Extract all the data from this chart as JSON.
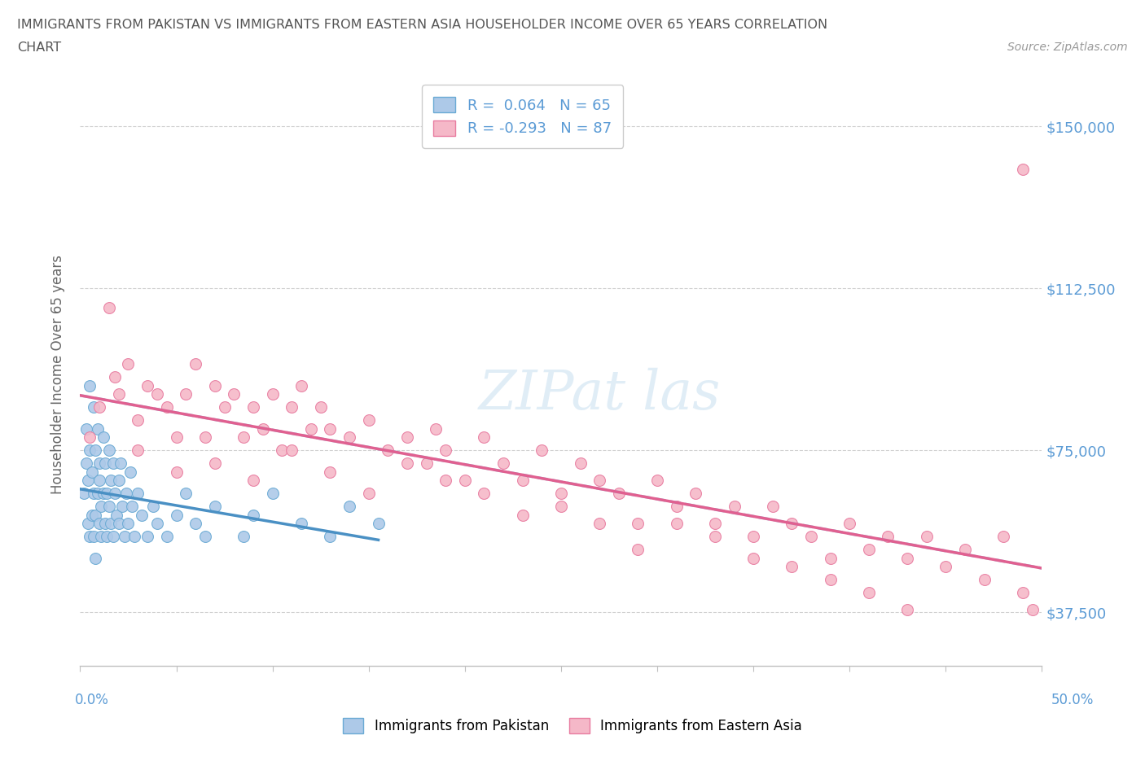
{
  "title_line1": "IMMIGRANTS FROM PAKISTAN VS IMMIGRANTS FROM EASTERN ASIA HOUSEHOLDER INCOME OVER 65 YEARS CORRELATION",
  "title_line2": "CHART",
  "source": "Source: ZipAtlas.com",
  "ylabel": "Householder Income Over 65 years",
  "y_ticks": [
    37500,
    75000,
    112500,
    150000
  ],
  "y_tick_labels": [
    "$37,500",
    "$75,000",
    "$112,500",
    "$150,000"
  ],
  "x_lim": [
    0,
    50
  ],
  "y_lim": [
    25000,
    160000
  ],
  "pakistan_color": "#adc9e8",
  "eastern_asia_color": "#f5b8c8",
  "pakistan_edge_color": "#6aaad4",
  "eastern_asia_edge_color": "#e87ca0",
  "pakistan_line_color": "#4a90c4",
  "eastern_asia_line_color": "#e06090",
  "pakistan_R": 0.064,
  "pakistan_N": 65,
  "eastern_asia_R": -0.293,
  "eastern_asia_N": 87,
  "legend_label_1": "Immigrants from Pakistan",
  "legend_label_2": "Immigrants from Eastern Asia",
  "watermark": "ZIPat las",
  "pakistan_scatter_x": [
    0.2,
    0.3,
    0.3,
    0.4,
    0.4,
    0.5,
    0.5,
    0.5,
    0.6,
    0.6,
    0.7,
    0.7,
    0.7,
    0.8,
    0.8,
    0.8,
    0.9,
    0.9,
    1.0,
    1.0,
    1.0,
    1.1,
    1.1,
    1.2,
    1.2,
    1.3,
    1.3,
    1.4,
    1.4,
    1.5,
    1.5,
    1.6,
    1.6,
    1.7,
    1.7,
    1.8,
    1.9,
    2.0,
    2.0,
    2.1,
    2.2,
    2.3,
    2.4,
    2.5,
    2.6,
    2.7,
    2.8,
    3.0,
    3.2,
    3.5,
    3.8,
    4.0,
    4.5,
    5.0,
    5.5,
    6.0,
    6.5,
    7.0,
    8.5,
    9.0,
    10.0,
    11.5,
    13.0,
    14.0,
    15.5
  ],
  "pakistan_scatter_y": [
    65000,
    72000,
    80000,
    58000,
    68000,
    55000,
    75000,
    90000,
    60000,
    70000,
    85000,
    65000,
    55000,
    75000,
    60000,
    50000,
    80000,
    65000,
    72000,
    58000,
    68000,
    62000,
    55000,
    78000,
    65000,
    58000,
    72000,
    65000,
    55000,
    75000,
    62000,
    68000,
    58000,
    72000,
    55000,
    65000,
    60000,
    68000,
    58000,
    72000,
    62000,
    55000,
    65000,
    58000,
    70000,
    62000,
    55000,
    65000,
    60000,
    55000,
    62000,
    58000,
    55000,
    60000,
    65000,
    58000,
    55000,
    62000,
    55000,
    60000,
    65000,
    58000,
    55000,
    62000,
    58000
  ],
  "eastern_asia_scatter_x": [
    0.5,
    1.0,
    1.5,
    1.8,
    2.0,
    2.5,
    3.0,
    3.5,
    4.0,
    4.5,
    5.0,
    5.5,
    6.0,
    6.5,
    7.0,
    7.5,
    8.0,
    8.5,
    9.0,
    9.5,
    10.0,
    10.5,
    11.0,
    11.5,
    12.0,
    12.5,
    13.0,
    14.0,
    15.0,
    16.0,
    17.0,
    18.0,
    18.5,
    19.0,
    20.0,
    21.0,
    22.0,
    23.0,
    24.0,
    25.0,
    26.0,
    27.0,
    28.0,
    29.0,
    30.0,
    31.0,
    32.0,
    33.0,
    34.0,
    35.0,
    36.0,
    37.0,
    38.0,
    39.0,
    40.0,
    41.0,
    42.0,
    43.0,
    44.0,
    45.0,
    46.0,
    47.0,
    48.0,
    49.0,
    49.5,
    3.0,
    5.0,
    7.0,
    9.0,
    11.0,
    13.0,
    15.0,
    17.0,
    19.0,
    21.0,
    23.0,
    25.0,
    27.0,
    29.0,
    31.0,
    33.0,
    35.0,
    37.0,
    39.0,
    41.0,
    43.0,
    49.0
  ],
  "eastern_asia_scatter_y": [
    78000,
    85000,
    108000,
    92000,
    88000,
    95000,
    82000,
    90000,
    88000,
    85000,
    78000,
    88000,
    95000,
    78000,
    90000,
    85000,
    88000,
    78000,
    85000,
    80000,
    88000,
    75000,
    85000,
    90000,
    80000,
    85000,
    80000,
    78000,
    82000,
    75000,
    78000,
    72000,
    80000,
    75000,
    68000,
    78000,
    72000,
    68000,
    75000,
    65000,
    72000,
    68000,
    65000,
    58000,
    68000,
    62000,
    65000,
    58000,
    62000,
    55000,
    62000,
    58000,
    55000,
    50000,
    58000,
    52000,
    55000,
    50000,
    55000,
    48000,
    52000,
    45000,
    55000,
    42000,
    38000,
    75000,
    70000,
    72000,
    68000,
    75000,
    70000,
    65000,
    72000,
    68000,
    65000,
    60000,
    62000,
    58000,
    52000,
    58000,
    55000,
    50000,
    48000,
    45000,
    42000,
    38000,
    140000
  ]
}
